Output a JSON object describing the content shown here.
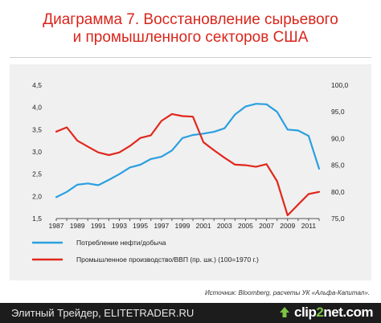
{
  "title_line1": "Диаграмма 7. Восстановление сырьевого",
  "title_line2": "и промышленного секторов США",
  "source": "Источник: Bloomberg, расчеты УК «Альфа-Капитал».",
  "footer": {
    "site": "Элитный Трейдер, ELITETRADER.RU",
    "brand_left": "clip",
    "brand_mid": "2",
    "brand_right": "net.com"
  },
  "colors": {
    "series1": "#2b9fe0",
    "series2": "#e0281c",
    "title": "#d9261c",
    "panel": "#f0f0f0"
  },
  "chart_data": {
    "type": "line",
    "x": [
      1987,
      1988,
      1989,
      1990,
      1991,
      1992,
      1993,
      1994,
      1995,
      1996,
      1997,
      1998,
      1999,
      2000,
      2001,
      2002,
      2003,
      2004,
      2005,
      2006,
      2007,
      2008,
      2009,
      2010,
      2011,
      2012
    ],
    "x_tick_labels": [
      "1987",
      "1989",
      "1991",
      "1993",
      "1995",
      "1997",
      "1999",
      "2001",
      "2003",
      "2005",
      "2007",
      "2009",
      "2011"
    ],
    "y_left_ticks": [
      "4,5",
      "4,0",
      "3,5",
      "3,0",
      "2,5",
      "2,0",
      "1,5"
    ],
    "y_right_ticks": [
      "100,0",
      "95,0",
      "90,0",
      "85,0",
      "80,0",
      "75,0"
    ],
    "ylim_left": [
      1.5,
      4.5
    ],
    "ylim_right": [
      75,
      100
    ],
    "series": [
      {
        "name": "Потребление нефти/добыча",
        "axis": "left",
        "values": [
          1.98,
          2.1,
          2.26,
          2.29,
          2.25,
          2.37,
          2.5,
          2.65,
          2.71,
          2.84,
          2.89,
          3.03,
          3.31,
          3.38,
          3.41,
          3.45,
          3.53,
          3.84,
          4.02,
          4.08,
          4.07,
          3.9,
          3.5,
          3.48,
          3.36,
          2.62
        ]
      },
      {
        "name": "Промышленное производство/ВВП (пр. шк.) (100=1970 г.)",
        "axis": "right",
        "values": [
          91.3,
          92.1,
          89.6,
          88.5,
          87.4,
          86.9,
          87.4,
          88.6,
          90.1,
          90.6,
          93.3,
          94.6,
          94.2,
          94.1,
          89.3,
          87.8,
          86.4,
          85.1,
          85.0,
          84.7,
          85.2,
          82.0,
          75.6,
          77.6,
          79.6,
          80.0
        ]
      }
    ],
    "legend_position": "bottom-left",
    "grid": false
  }
}
